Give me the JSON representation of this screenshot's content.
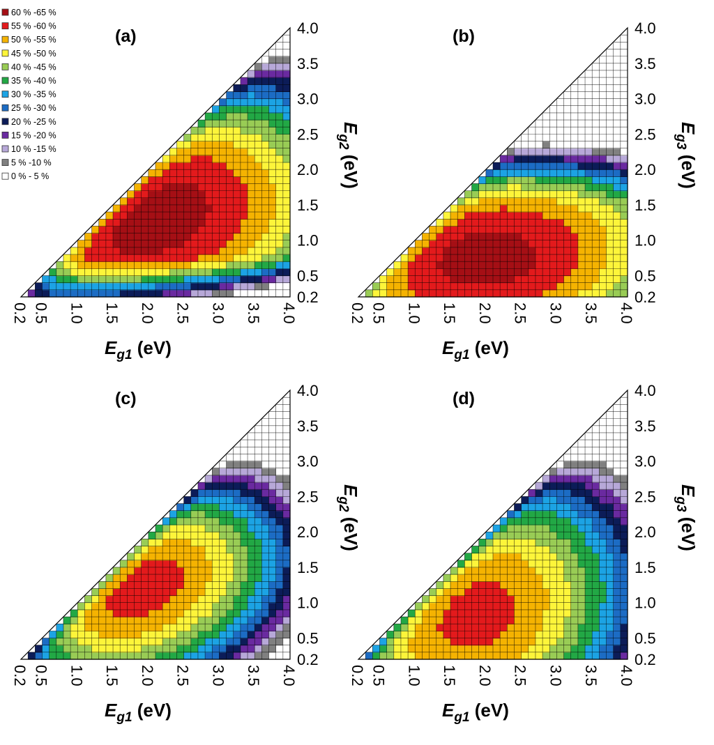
{
  "chart_data": [
    {
      "type": "heatmap",
      "panel_label": "(a)",
      "xlabel": {
        "main": "E",
        "sub": "g1",
        "unit": " (eV)"
      },
      "ylabel": {
        "main": "E",
        "sub": "g2",
        "unit": " (eV)"
      },
      "xlim": [
        0.2,
        4.0
      ],
      "ylim": [
        0.2,
        4.0
      ],
      "x_ticks": [
        "0.2",
        "0.5",
        "1.0",
        "1.5",
        "2.0",
        "2.5",
        "3.0",
        "3.5",
        "4.0"
      ],
      "y_ticks": [
        "0.2",
        "0.5",
        "1.0",
        "1.5",
        "2.0",
        "2.5",
        "3.0",
        "3.5",
        "4.0"
      ],
      "peak": {
        "x": 2.0,
        "y": 1.35
      },
      "max_efficiency": 63
    },
    {
      "type": "heatmap",
      "panel_label": "(b)",
      "xlabel": {
        "main": "E",
        "sub": "g1",
        "unit": " (eV)"
      },
      "ylabel": {
        "main": "E",
        "sub": "g3",
        "unit": " (eV)"
      },
      "xlim": [
        0.2,
        4.0
      ],
      "ylim": [
        0.2,
        4.0
      ],
      "x_ticks": [
        "0.2",
        "0.5",
        "1.0",
        "1.5",
        "2.0",
        "2.5",
        "3.0",
        "3.5",
        "4.0"
      ],
      "y_ticks": [
        "0.2",
        "0.5",
        "1.0",
        "1.5",
        "2.0",
        "2.5",
        "3.0",
        "3.5",
        "4.0"
      ],
      "peak": {
        "x": 2.0,
        "y": 0.75
      },
      "max_efficiency": 62
    },
    {
      "type": "heatmap",
      "panel_label": "(c)",
      "xlabel": {
        "main": "E",
        "sub": "g1",
        "unit": " (eV)"
      },
      "ylabel": {
        "main": "E",
        "sub": "g2",
        "unit": " (eV)"
      },
      "xlim": [
        0.2,
        4.0
      ],
      "ylim": [
        0.2,
        4.0
      ],
      "x_ticks": [
        "0.2",
        "0.5",
        "1.0",
        "1.5",
        "2.0",
        "2.5",
        "3.0",
        "3.5",
        "4.0"
      ],
      "y_ticks": [
        "0.2",
        "0.5",
        "1.0",
        "1.5",
        "2.0",
        "2.5",
        "3.0",
        "3.5",
        "4.0"
      ],
      "peak": {
        "x": 1.85,
        "y": 1.25
      },
      "max_efficiency": 58
    },
    {
      "type": "heatmap",
      "panel_label": "(d)",
      "xlabel": {
        "main": "E",
        "sub": "g1",
        "unit": " (eV)"
      },
      "ylabel": {
        "main": "E",
        "sub": "g3",
        "unit": " (eV)"
      },
      "xlim": [
        0.2,
        4.0
      ],
      "ylim": [
        0.2,
        4.0
      ],
      "x_ticks": [
        "0.2",
        "0.5",
        "1.0",
        "1.5",
        "2.0",
        "2.5",
        "3.0",
        "3.5",
        "4.0"
      ],
      "y_ticks": [
        "0.2",
        "0.5",
        "1.0",
        "1.5",
        "2.0",
        "2.5",
        "3.0",
        "3.5",
        "4.0"
      ],
      "peak": {
        "x": 1.85,
        "y": 0.85
      },
      "max_efficiency": 57
    }
  ],
  "legend": {
    "placement": "top-left",
    "entries": [
      {
        "label": "60 % -65 %",
        "color": "#a50f15"
      },
      {
        "label": "55 % -60 %",
        "color": "#e31a1c"
      },
      {
        "label": "50 % -55 %",
        "color": "#f5b301"
      },
      {
        "label": "45 % -50 %",
        "color": "#fdf53a"
      },
      {
        "label": "40 % -45 %",
        "color": "#99cc55"
      },
      {
        "label": "35 % -40 %",
        "color": "#22a845"
      },
      {
        "label": "30 % -35 %",
        "color": "#1ca3e4"
      },
      {
        "label": "25 % -30 %",
        "color": "#1c6cc4"
      },
      {
        "label": "20 % -25 %",
        "color": "#0c1c58"
      },
      {
        "label": "15 % -20 %",
        "color": "#6a2aa0"
      },
      {
        "label": "10 % -15 %",
        "color": "#b7a8d8"
      },
      {
        "label": "5   % -10 %",
        "color": "#808080"
      },
      {
        "label": "0   % - 5   %",
        "color": "#ffffff"
      }
    ]
  }
}
